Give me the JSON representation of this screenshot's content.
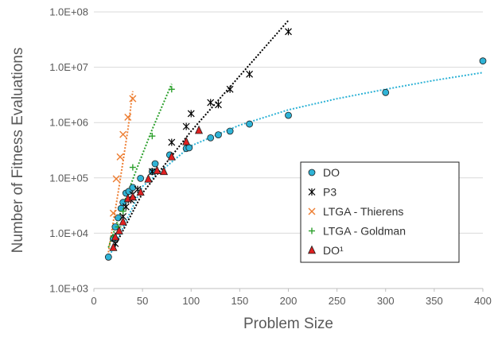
{
  "chart_data": {
    "type": "scatter",
    "title": "",
    "xlabel": "Problem Size",
    "ylabel": "Number of Fitness Evaluations",
    "xlim": [
      0,
      400
    ],
    "ylim": [
      1000,
      100000000
    ],
    "yscale": "log",
    "grid": "horizontal",
    "x_ticks": [
      "0",
      "50",
      "100",
      "150",
      "200",
      "250",
      "300",
      "350",
      "400"
    ],
    "y_ticks": [
      "1.0E+03",
      "1.0E+04",
      "1.0E+05",
      "1.0E+06",
      "1.0E+07",
      "1.0E+08"
    ],
    "legend_position": "right",
    "series": [
      {
        "name": "DO",
        "marker": "circle",
        "color": "#2fb3d6",
        "trend_color": "#2fb3d6",
        "trend": [
          [
            15,
            3500
          ],
          [
            50,
            70000
          ],
          [
            100,
            380000
          ],
          [
            150,
            900000
          ],
          [
            200,
            1700000
          ],
          [
            250,
            2700000
          ],
          [
            300,
            4000000
          ],
          [
            350,
            5800000
          ],
          [
            400,
            8000000
          ]
        ],
        "points": [
          [
            15,
            3700
          ],
          [
            20,
            8000
          ],
          [
            22,
            13000
          ],
          [
            25,
            19000
          ],
          [
            28,
            28000
          ],
          [
            30,
            36000
          ],
          [
            33,
            53000
          ],
          [
            36,
            57000
          ],
          [
            40,
            67000
          ],
          [
            48,
            98000
          ],
          [
            60,
            130000
          ],
          [
            63,
            180000
          ],
          [
            78,
            260000
          ],
          [
            95,
            340000
          ],
          [
            98,
            350000
          ],
          [
            120,
            530000
          ],
          [
            128,
            600000
          ],
          [
            140,
            700000
          ],
          [
            160,
            940000
          ],
          [
            200,
            1350000
          ],
          [
            300,
            3500000
          ],
          [
            400,
            13000000
          ]
        ]
      },
      {
        "name": "P3",
        "marker": "asterisk",
        "color": "#000000",
        "trend_color": "#000000",
        "trend": [
          [
            22,
            6000
          ],
          [
            50,
            53000
          ],
          [
            100,
            700000
          ],
          [
            150,
            7000000
          ],
          [
            200,
            70000000
          ]
        ],
        "points": [
          [
            22,
            6500
          ],
          [
            30,
            20000
          ],
          [
            33,
            30000
          ],
          [
            38,
            40000
          ],
          [
            40,
            50000
          ],
          [
            45,
            62000
          ],
          [
            60,
            130000
          ],
          [
            80,
            440000
          ],
          [
            95,
            850000
          ],
          [
            100,
            1450000
          ],
          [
            120,
            2300000
          ],
          [
            128,
            2100000
          ],
          [
            140,
            4000000
          ],
          [
            160,
            7500000
          ],
          [
            200,
            44000000
          ]
        ]
      },
      {
        "name": "LTGA - Thierens",
        "marker": "x",
        "color": "#ed7d31",
        "trend_color": "#ed7d31",
        "trend": [
          [
            15,
            4500
          ],
          [
            20,
            16000
          ],
          [
            25,
            55000
          ],
          [
            30,
            200000
          ],
          [
            35,
            750000
          ],
          [
            40,
            3700000
          ]
        ],
        "points": [
          [
            20,
            23000
          ],
          [
            23,
            96000
          ],
          [
            27,
            240000
          ],
          [
            30,
            610000
          ],
          [
            35,
            1250000
          ],
          [
            40,
            2700000
          ]
        ]
      },
      {
        "name": "LTGA - Goldman",
        "marker": "plus",
        "color": "#2ca02c",
        "trend_color": "#2ca02c",
        "trend": [
          [
            15,
            5500
          ],
          [
            30,
            32000
          ],
          [
            45,
            160000
          ],
          [
            60,
            750000
          ],
          [
            80,
            5000000
          ]
        ],
        "points": [
          [
            20,
            8500
          ],
          [
            25,
            13000
          ],
          [
            30,
            25000
          ],
          [
            40,
            155000
          ],
          [
            60,
            570000
          ],
          [
            80,
            4000000
          ]
        ]
      },
      {
        "name": "DO¹",
        "marker": "triangle",
        "color": "#e02020",
        "points": [
          [
            20,
            5500
          ],
          [
            22,
            8500
          ],
          [
            26,
            11000
          ],
          [
            30,
            16000
          ],
          [
            35,
            42000
          ],
          [
            40,
            45000
          ],
          [
            48,
            55000
          ],
          [
            56,
            95000
          ],
          [
            65,
            135000
          ],
          [
            72,
            130000
          ],
          [
            80,
            240000
          ],
          [
            95,
            450000
          ],
          [
            108,
            720000
          ]
        ]
      }
    ]
  }
}
